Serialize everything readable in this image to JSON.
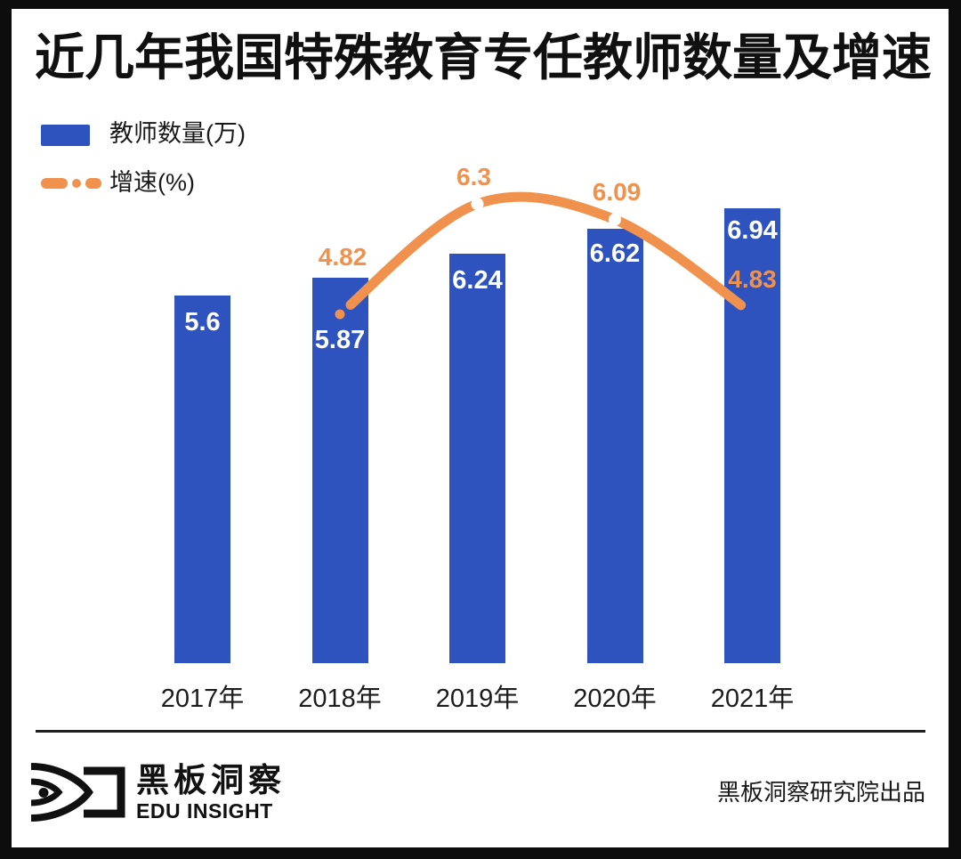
{
  "title": "近几年我国特殊教育专任教师数量及增速",
  "legend": {
    "items": [
      {
        "label": "教师数量(万)",
        "series": "bar"
      },
      {
        "label": "增速(%)",
        "series": "line"
      }
    ]
  },
  "colors": {
    "bar_blue": "#2e53be",
    "line_orange": "#f0924e",
    "text_black": "#141414",
    "value_label_white": "#ffffff",
    "frame_black": "#0d0d0d"
  },
  "chart_data": {
    "type": "bar",
    "title": "近几年我国特殊教育专任教师数量及增速",
    "categories": [
      "2017年",
      "2018年",
      "2019年",
      "2020年",
      "2021年"
    ],
    "series": [
      {
        "name": "教师数量(万)",
        "type": "bar",
        "color": "#2e53be",
        "values": [
          5.6,
          5.87,
          6.24,
          6.62,
          6.94
        ],
        "value_labels": [
          "5.6",
          "5.87",
          "6.24",
          "6.62",
          "6.94"
        ],
        "value_label_position": "inside-top",
        "value_label_color": "#ffffff"
      },
      {
        "name": "增速(%)",
        "type": "line",
        "color": "#f0924e",
        "line_style": "solid-with-dot-ends",
        "marker": "white-dot-midpoints",
        "values": [
          null,
          4.82,
          6.3,
          6.09,
          4.83
        ],
        "value_labels": [
          null,
          "4.82",
          "6.3",
          "6.09",
          "4.83"
        ]
      }
    ],
    "xlabel": "",
    "ylabel": "",
    "grid": false,
    "axes_shown": false,
    "legend_position": "top-left"
  },
  "footer": {
    "brand_cn": "黑板洞察",
    "brand_en": "EDU INSIGHT",
    "credit": "黑板洞察研究院出品"
  }
}
